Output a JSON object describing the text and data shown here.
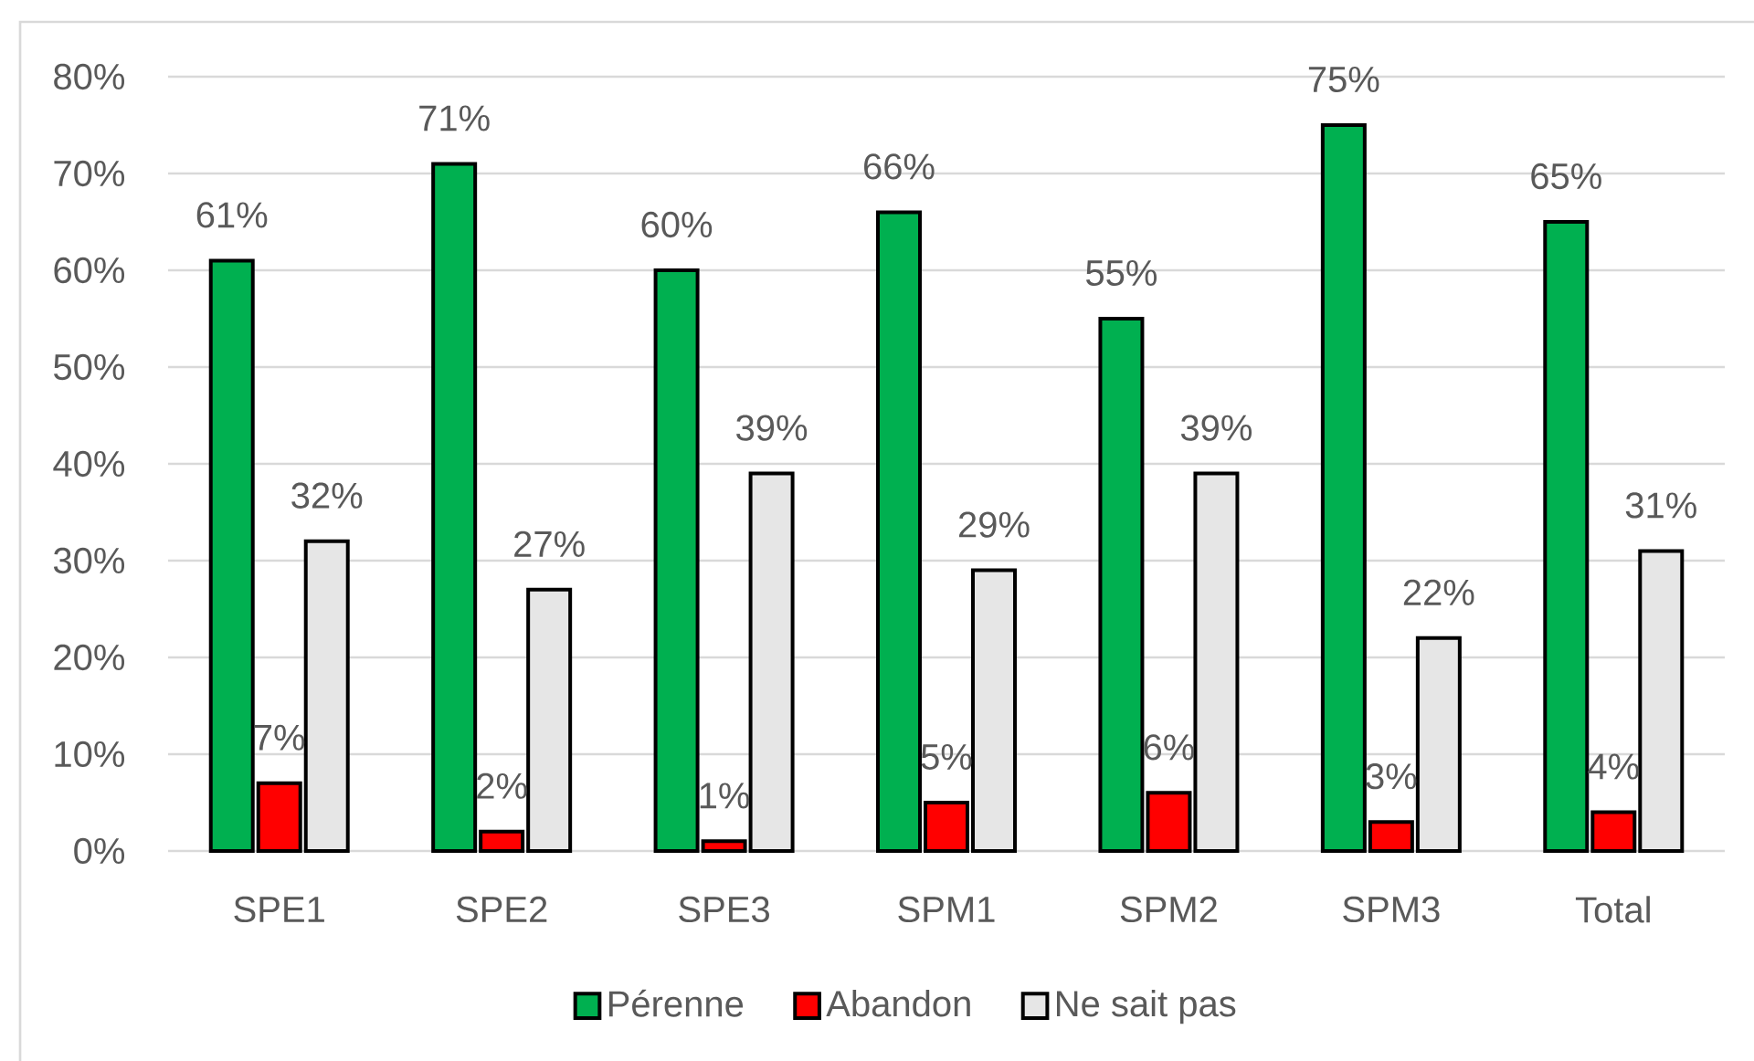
{
  "chart_data": {
    "type": "bar",
    "categories": [
      "SPE1",
      "SPE2",
      "SPE3",
      "SPM1",
      "SPM2",
      "SPM3",
      "Total"
    ],
    "series": [
      {
        "name": "Pérenne",
        "color": "#00b050",
        "values": [
          61,
          71,
          60,
          66,
          55,
          75,
          65
        ],
        "value_labels": [
          "61%",
          "71%",
          "60%",
          "66%",
          "55%",
          "75%",
          "65%"
        ]
      },
      {
        "name": "Abandon",
        "color": "#ff0000",
        "values": [
          7,
          2,
          1,
          5,
          6,
          3,
          4
        ],
        "value_labels": [
          "7%",
          "2%",
          "1%",
          "5%",
          "6%",
          "3%",
          "4%"
        ]
      },
      {
        "name": "Ne sait pas",
        "color": "#e6e6e6",
        "values": [
          32,
          27,
          39,
          29,
          39,
          22,
          31
        ],
        "value_labels": [
          "32%",
          "27%",
          "39%",
          "29%",
          "39%",
          "22%",
          "31%"
        ]
      }
    ],
    "ylim": [
      0,
      80
    ],
    "yticks": [
      {
        "value": 0,
        "label": "0%"
      },
      {
        "value": 10,
        "label": "10%"
      },
      {
        "value": 20,
        "label": "20%"
      },
      {
        "value": 30,
        "label": "30%"
      },
      {
        "value": 40,
        "label": "40%"
      },
      {
        "value": 50,
        "label": "50%"
      },
      {
        "value": 60,
        "label": "60%"
      },
      {
        "value": 70,
        "label": "70%"
      },
      {
        "value": 80,
        "label": "80%"
      }
    ],
    "grid": "y",
    "legend": "bottom"
  }
}
